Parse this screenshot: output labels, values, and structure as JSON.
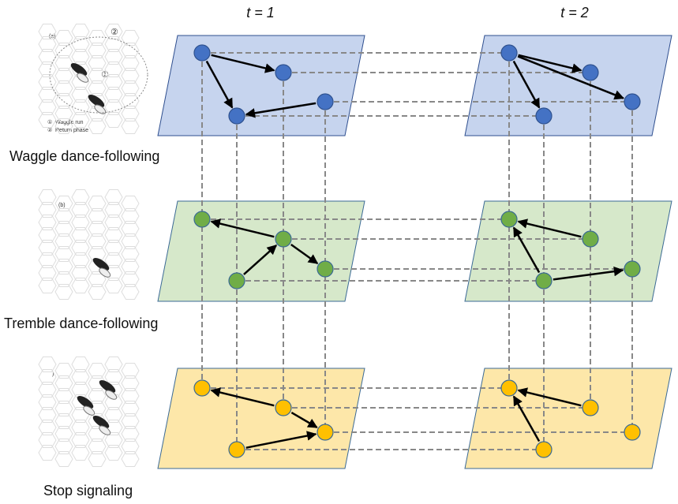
{
  "columns": [
    "t = 1",
    "t = 2"
  ],
  "layers": [
    {
      "label": "Waggle dance-following",
      "panel": "(a)",
      "legend": [
        {
          "symbol": "①",
          "text": "Waggle run"
        },
        {
          "symbol": "②",
          "text": "Return phase"
        }
      ],
      "markers": [
        "①",
        "②"
      ]
    },
    {
      "label": "Tremble dance-following",
      "panel": "(b)"
    },
    {
      "label": "Stop signaling",
      "panel": ")"
    }
  ]
}
